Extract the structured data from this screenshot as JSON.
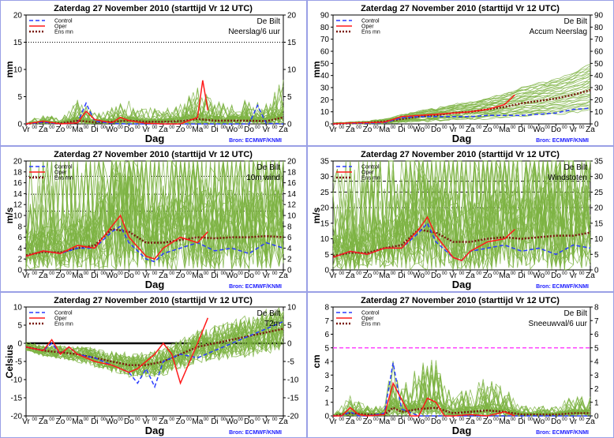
{
  "days": [
    "Vr",
    "Za",
    "Zo",
    "Ma",
    "Di",
    "Wo",
    "Do",
    "Vr",
    "Za",
    "Zo",
    "Ma",
    "Di",
    "Wo",
    "Do",
    "Vr",
    "Za"
  ],
  "half_label": "00",
  "xlabel": "Dag",
  "source": "Bron: ECMWF/KNMI",
  "legend": {
    "control": "Control",
    "oper": "Oper",
    "mean": "Ens mn"
  },
  "colors": {
    "control": "#2a3cff",
    "oper": "#ff1a1a",
    "mean": "#7a1a10",
    "ensemble": "#7cb342",
    "source": "#1a1aff",
    "border": "#9aa0e6"
  },
  "chart_data": [
    {
      "type": "line",
      "title": "Zaterdag  27 November  2010  (starttijd  Vr 12 UTC)",
      "location": "De Bilt",
      "variable": "Neerslag/6 uur",
      "ylabel": "mm",
      "ylim": [
        0,
        20
      ],
      "yticks": [
        0,
        5,
        10,
        15,
        20
      ],
      "ref_lines": [
        {
          "y": 15,
          "style": "dotted",
          "color": "#000000"
        }
      ],
      "control": {
        "x": [
          0,
          1,
          2,
          3,
          3.5,
          4,
          5,
          6,
          7,
          8,
          9,
          10,
          11,
          12,
          13,
          13.5,
          14,
          15
        ],
        "y": [
          0,
          0.3,
          0,
          0.2,
          3.8,
          0.5,
          0.1,
          0,
          0,
          0,
          0,
          0,
          0,
          0,
          0,
          3.4,
          0.1,
          0
        ]
      },
      "oper": {
        "x": [
          0,
          1,
          2,
          3,
          3.5,
          4,
          5,
          5.5,
          6,
          7,
          8,
          9,
          10,
          10.3,
          10.6
        ],
        "y": [
          0,
          0.5,
          0,
          0.2,
          2.3,
          0.8,
          0.2,
          1.2,
          0.6,
          0.1,
          0,
          0,
          1.2,
          8,
          2.5
        ]
      },
      "mean": {
        "x": [
          0,
          1,
          2,
          3,
          4,
          5,
          6,
          7,
          8,
          9,
          10,
          11,
          12,
          13,
          14,
          15
        ],
        "y": [
          0,
          0.3,
          0.1,
          0.6,
          0.3,
          0.4,
          0.6,
          0.4,
          0.4,
          0.5,
          0.9,
          0.6,
          0.6,
          0.6,
          0.5,
          1.2
        ]
      }
    },
    {
      "type": "line",
      "title": "Zaterdag  27 November  2010  (starttijd  Vr 12 UTC)",
      "location": "De Bilt",
      "variable": "Accum Neerslag",
      "ylabel": "mm",
      "ylim": [
        0,
        90
      ],
      "yticks": [
        0,
        10,
        20,
        30,
        40,
        50,
        60,
        70,
        80,
        90
      ],
      "ref_lines": [],
      "control": {
        "x": [
          0,
          1,
          2,
          3,
          4,
          5,
          6,
          7,
          8,
          9,
          10,
          11,
          12,
          13,
          14,
          15
        ],
        "y": [
          0,
          0.5,
          0.5,
          1,
          5,
          6,
          6,
          6,
          6,
          7,
          7,
          7,
          8,
          9,
          12,
          13
        ]
      },
      "oper": {
        "x": [
          0,
          1,
          2,
          3,
          4,
          5,
          6,
          7,
          8,
          9,
          10,
          10.6
        ],
        "y": [
          0,
          0.8,
          1,
          1.5,
          6,
          7,
          8,
          9,
          10,
          12,
          16,
          24
        ]
      },
      "mean": {
        "x": [
          0,
          1,
          2,
          3,
          4,
          5,
          6,
          7,
          8,
          9,
          10,
          11,
          12,
          13,
          14,
          15
        ],
        "y": [
          0,
          0.5,
          1,
          2,
          4,
          6,
          7,
          9,
          10,
          12,
          14,
          17,
          19,
          21,
          24,
          28
        ]
      }
    },
    {
      "type": "line",
      "title": "Zaterdag  27 November  2010  (starttijd  Vr 12 UTC)",
      "location": "De Bilt",
      "variable": "10m wind",
      "ylabel": "m/s",
      "ylim": [
        0,
        20
      ],
      "yticks": [
        0,
        2,
        4,
        6,
        8,
        10,
        12,
        14,
        16,
        18,
        20
      ],
      "ref_lines": [
        {
          "y": 10.8,
          "style": "dotted",
          "color": "#000000"
        },
        {
          "y": 13.9,
          "style": "dotted",
          "color": "#000000"
        },
        {
          "y": 17.2,
          "style": "dotted",
          "color": "#000000"
        }
      ],
      "control": {
        "x": [
          0,
          1,
          2,
          3,
          4,
          5,
          5.5,
          6,
          7,
          7.5,
          8,
          9,
          10,
          11,
          12,
          13,
          14,
          15
        ],
        "y": [
          2.5,
          3.5,
          3,
          4,
          4,
          7,
          8,
          5,
          2,
          1.5,
          3,
          4,
          5,
          3.5,
          4,
          3,
          5,
          4
        ]
      },
      "oper": {
        "x": [
          0,
          1,
          2,
          3,
          4,
          5,
          5.5,
          6,
          7,
          7.5,
          8,
          9,
          10,
          10.6
        ],
        "y": [
          2.5,
          3.5,
          3,
          4.5,
          4,
          8,
          10,
          6,
          2.5,
          2,
          4,
          6,
          5,
          7
        ]
      },
      "mean": {
        "x": [
          0,
          1,
          2,
          3,
          4,
          5,
          6,
          7,
          8,
          9,
          10,
          11,
          12,
          13,
          14,
          15
        ],
        "y": [
          2.7,
          3.3,
          3.2,
          4,
          4.5,
          7.5,
          7,
          5,
          5,
          5.5,
          6,
          5.8,
          6,
          6,
          6.2,
          6
        ]
      }
    },
    {
      "type": "line",
      "title": "Zaterdag  27 November  2010  (starttijd  Vr 12 UTC)",
      "location": "De Bilt",
      "variable": "Windstoten",
      "ylabel": "m/s",
      "ylim": [
        0,
        35
      ],
      "yticks": [
        0,
        5,
        10,
        15,
        20,
        25,
        30,
        35
      ],
      "ref_lines": [
        {
          "y": 20,
          "style": "dotted",
          "color": "#000000"
        },
        {
          "y": 25,
          "style": "dashed",
          "color": "#000000"
        },
        {
          "y": 28.5,
          "style": "dashed",
          "color": "#000000"
        }
      ],
      "control": {
        "x": [
          0,
          1,
          2,
          3,
          4,
          5,
          5.5,
          6,
          7,
          7.5,
          8,
          9,
          10,
          11,
          12,
          13,
          14,
          15
        ],
        "y": [
          4,
          6,
          5,
          7,
          7,
          12,
          15,
          9,
          4,
          3,
          6,
          7,
          8,
          6,
          7,
          5,
          8,
          7
        ]
      },
      "oper": {
        "x": [
          0,
          1,
          2,
          3,
          4,
          5,
          5.5,
          6,
          7,
          7.5,
          8,
          9,
          10,
          10.6
        ],
        "y": [
          4,
          6,
          5,
          7,
          7,
          13,
          17,
          11,
          4,
          3,
          6,
          9,
          10,
          13
        ]
      },
      "mean": {
        "x": [
          0,
          1,
          2,
          3,
          4,
          5,
          6,
          7,
          8,
          9,
          10,
          11,
          12,
          13,
          14,
          15
        ],
        "y": [
          4.5,
          5.5,
          5.5,
          7,
          8,
          13,
          12,
          9,
          9,
          10,
          10.5,
          10,
          10.5,
          11,
          11,
          12
        ]
      }
    },
    {
      "type": "line",
      "title": "Zaterdag  27 November  2010  (starttijd  Vr 12 UTC)",
      "location": "De Bilt",
      "variable": "T2m",
      "ylabel": "Celsius",
      "ylim": [
        -20,
        10
      ],
      "yticks": [
        -20,
        -15,
        -10,
        -5,
        0,
        5,
        10
      ],
      "ref_lines": [
        {
          "y": 0,
          "style": "thick",
          "color": "#000000"
        }
      ],
      "control": {
        "x": [
          0,
          1,
          1.5,
          2,
          2.5,
          3,
          4,
          5,
          6,
          6.5,
          7,
          7.5,
          8,
          9,
          10,
          11,
          12,
          13,
          14,
          15
        ],
        "y": [
          -1,
          -2,
          0,
          -3,
          -1,
          -3,
          -4,
          -6,
          -8,
          -11,
          -7,
          -12,
          -5,
          -3,
          -4,
          -2,
          0,
          2,
          4,
          6
        ]
      },
      "oper": {
        "x": [
          0,
          1,
          1.5,
          2,
          2.5,
          3,
          4,
          5,
          6,
          6.5,
          7,
          7.5,
          8,
          8.5,
          9,
          10,
          10.6
        ],
        "y": [
          -1,
          -2,
          1,
          -3,
          -1,
          -3,
          -5,
          -6,
          -8,
          -7,
          -5,
          -3,
          0,
          -3,
          -11,
          0,
          7
        ]
      },
      "mean": {
        "x": [
          0,
          1,
          2,
          3,
          4,
          5,
          6,
          7,
          8,
          9,
          10,
          11,
          12,
          13,
          14,
          15
        ],
        "y": [
          -1,
          -2,
          -2.5,
          -3,
          -4,
          -5,
          -6,
          -6,
          -5,
          -3,
          -1,
          0,
          1,
          2,
          3,
          4
        ]
      }
    },
    {
      "type": "line",
      "title": "Zaterdag  27 November  2010  (starttijd  Vr 12 UTC)",
      "location": "De Bilt",
      "variable": "Sneeuwval/6 uur",
      "ylabel": "cm",
      "ylim": [
        0,
        8
      ],
      "yticks": [
        0,
        1,
        2,
        3,
        4,
        5,
        6,
        7,
        8
      ],
      "ref_lines": [
        {
          "y": 5,
          "style": "dashed",
          "color": "#ff44ff"
        }
      ],
      "control": {
        "x": [
          0,
          0.5,
          1,
          1.5,
          2,
          3,
          3.5,
          4,
          5,
          6,
          7,
          8,
          9,
          10,
          11,
          12,
          13,
          14,
          15
        ],
        "y": [
          0,
          0,
          0.3,
          0,
          0,
          0.2,
          3.9,
          0.5,
          0,
          0,
          0,
          0,
          0,
          0,
          0,
          0,
          0,
          0,
          0
        ]
      },
      "oper": {
        "x": [
          0,
          0.5,
          1,
          1.5,
          2,
          3,
          3.5,
          4,
          4.5,
          5,
          5.5,
          6,
          6.5,
          7,
          8,
          9,
          10,
          10.6
        ],
        "y": [
          0,
          0,
          0.6,
          0.1,
          0,
          0.1,
          2.4,
          1.2,
          0,
          0,
          1.3,
          1,
          0,
          0,
          0.1,
          0,
          0.3,
          0
        ]
      },
      "mean": {
        "x": [
          0,
          1,
          2,
          3,
          3.5,
          4,
          5,
          6,
          7,
          8,
          9,
          10,
          11,
          12,
          13,
          14,
          15
        ],
        "y": [
          0,
          0.2,
          0.1,
          0.1,
          0.6,
          0.3,
          0.5,
          0.6,
          0.2,
          0.3,
          0.4,
          0.3,
          0.1,
          0.1,
          0.1,
          0.2,
          0.2
        ]
      }
    }
  ]
}
